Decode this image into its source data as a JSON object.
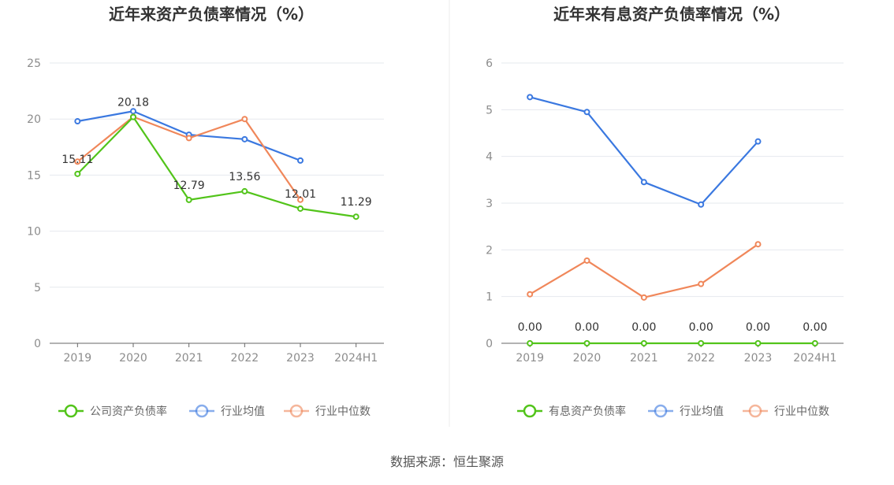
{
  "source": "数据来源：恒生聚源",
  "chart_data": [
    {
      "type": "line",
      "title": "近年来资产负债率情况（%）",
      "categories": [
        "2019",
        "2020",
        "2021",
        "2022",
        "2023",
        "2024H1"
      ],
      "ylim": [
        0,
        25
      ],
      "yticks": [
        0,
        5,
        10,
        15,
        20,
        25
      ],
      "grid": true,
      "legend": "bottom",
      "series": [
        {
          "name": "公司资产负债率",
          "color": "#52c41a",
          "values": [
            15.11,
            20.18,
            12.79,
            13.56,
            12.01,
            11.29
          ],
          "labels": [
            "15.11",
            "20.18",
            "12.79",
            "13.56",
            "12.01",
            "11.29"
          ]
        },
        {
          "name": "行业均值",
          "color": "#3a78e0",
          "values": [
            19.8,
            20.7,
            18.6,
            18.2,
            16.3,
            null
          ]
        },
        {
          "name": "行业中位数",
          "color": "#f0875a",
          "values": [
            16.2,
            20.2,
            18.3,
            20.0,
            12.8,
            null
          ]
        }
      ]
    },
    {
      "type": "line",
      "title": "近年来有息资产负债率情况（%）",
      "categories": [
        "2019",
        "2020",
        "2021",
        "2022",
        "2023",
        "2024H1"
      ],
      "ylim": [
        0,
        6
      ],
      "yticks": [
        0,
        1,
        2,
        3,
        4,
        5,
        6
      ],
      "grid": true,
      "legend": "bottom",
      "series": [
        {
          "name": "有息资产负债率",
          "color": "#52c41a",
          "values": [
            0,
            0,
            0,
            0,
            0,
            0
          ],
          "labels": [
            "0.00",
            "0.00",
            "0.00",
            "0.00",
            "0.00",
            "0.00"
          ]
        },
        {
          "name": "行业均值",
          "color": "#3a78e0",
          "values": [
            5.27,
            4.95,
            3.45,
            2.97,
            4.32,
            null
          ]
        },
        {
          "name": "行业中位数",
          "color": "#f0875a",
          "values": [
            1.05,
            1.77,
            0.98,
            1.27,
            2.12,
            null
          ]
        }
      ]
    }
  ]
}
